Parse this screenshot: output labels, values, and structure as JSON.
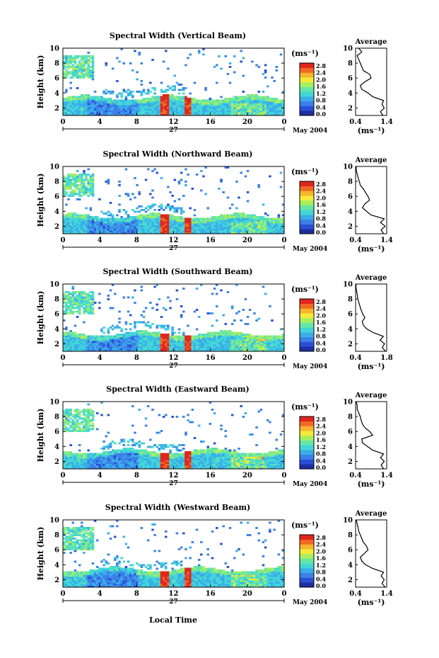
{
  "figure": {
    "shared_xlabel": "Local Time",
    "date_label": "May 2004",
    "day_label": "27"
  },
  "colorbar": {
    "unit": "(ms⁻¹)",
    "ticks": [
      "0.0",
      "0.4",
      "0.8",
      "1.2",
      "1.6",
      "2.0",
      "2.4",
      "2.8"
    ],
    "colors": [
      "#1d2fa0",
      "#2a4fd6",
      "#3c7fe8",
      "#3aaee8",
      "#43d6d8",
      "#66e6a6",
      "#a6ef5e",
      "#f5ea3c",
      "#f7b52d",
      "#f06a24",
      "#e0261e"
    ]
  },
  "chart_data": [
    {
      "type": "heatmap",
      "title": "Spectral Width (Vertical Beam)",
      "ylabel": "Height (km)",
      "xlabel": "Local Time",
      "x_ticks": [
        "0",
        "4",
        "8",
        "12",
        "16",
        "20",
        "0"
      ],
      "y_ticks": [
        "2",
        "4",
        "6",
        "8",
        "10"
      ],
      "xlim": [
        0,
        24
      ],
      "ylim": [
        1,
        10
      ],
      "colorbar_range": [
        0,
        3.0
      ],
      "profile": {
        "title": "Average",
        "xlabel": "(ms⁻¹)",
        "x_ticks": [
          "0.4",
          "1.4"
        ],
        "xlim": [
          0.4,
          1.4
        ],
        "heights": [
          1.0,
          1.5,
          2.0,
          2.5,
          3.0,
          3.5,
          4.0,
          4.5,
          5.0,
          5.5,
          6.0,
          6.5,
          7.0,
          7.5,
          8.0,
          8.5,
          9.0,
          9.5,
          10.0
        ],
        "values": [
          1.28,
          1.2,
          1.32,
          1.25,
          1.3,
          0.95,
          0.8,
          0.6,
          0.55,
          0.7,
          0.9,
          0.85,
          0.65,
          0.6,
          0.55,
          0.5,
          0.45,
          0.6,
          0.5
        ]
      }
    },
    {
      "type": "heatmap",
      "title": "Spectral Width (Northward Beam)",
      "ylabel": "Height (km)",
      "xlabel": "Local Time",
      "x_ticks": [
        "0",
        "4",
        "8",
        "12",
        "16",
        "20",
        "0"
      ],
      "y_ticks": [
        "2",
        "4",
        "6",
        "8",
        "10"
      ],
      "xlim": [
        0,
        24
      ],
      "ylim": [
        1,
        10
      ],
      "colorbar_range": [
        0,
        3.0
      ],
      "profile": {
        "title": "Average",
        "xlabel": "(ms⁻¹)",
        "x_ticks": [
          "0.4",
          "1.4"
        ],
        "xlim": [
          0.4,
          1.4
        ],
        "heights": [
          1.0,
          1.5,
          2.0,
          2.5,
          3.0,
          3.5,
          4.0,
          4.5,
          5.0,
          5.5,
          6.0,
          6.5,
          7.0,
          7.5,
          8.0,
          8.5,
          9.0,
          9.5,
          10.0
        ],
        "values": [
          1.3,
          1.22,
          1.35,
          1.2,
          1.32,
          0.9,
          0.75,
          0.62,
          0.7,
          0.85,
          0.8,
          0.72,
          0.65,
          0.55,
          0.52,
          0.48,
          0.45,
          0.42,
          0.42
        ]
      }
    },
    {
      "type": "heatmap",
      "title": "Spectral Width (Southward Beam)",
      "ylabel": "Height (km)",
      "xlabel": "Local Time",
      "x_ticks": [
        "0",
        "4",
        "8",
        "12",
        "16",
        "20",
        "0"
      ],
      "y_ticks": [
        "2",
        "4",
        "6",
        "8",
        "10"
      ],
      "xlim": [
        0,
        24
      ],
      "ylim": [
        1,
        10
      ],
      "colorbar_range": [
        0,
        3.0
      ],
      "profile": {
        "title": "Average",
        "xlabel": "(ms⁻¹)",
        "x_ticks": [
          "0.4",
          "1.8"
        ],
        "xlim": [
          0.4,
          1.8
        ],
        "heights": [
          1.0,
          1.5,
          2.0,
          2.5,
          3.0,
          3.5,
          4.0,
          4.5,
          5.0,
          5.5,
          6.0,
          6.5,
          7.0,
          7.5,
          8.0,
          8.5,
          9.0,
          9.5,
          10.0
        ],
        "values": [
          1.75,
          1.6,
          1.7,
          1.5,
          1.65,
          1.2,
          0.9,
          0.75,
          0.7,
          0.82,
          0.72,
          0.65,
          0.6,
          0.55,
          0.5,
          0.48,
          0.45,
          0.42,
          0.42
        ]
      }
    },
    {
      "type": "heatmap",
      "title": "Spectral Width (Eastward Beam)",
      "ylabel": "Height (km)",
      "xlabel": "Local Time",
      "x_ticks": [
        "0",
        "4",
        "8",
        "12",
        "16",
        "20",
        "0"
      ],
      "y_ticks": [
        "2",
        "4",
        "6",
        "8",
        "10"
      ],
      "xlim": [
        0,
        24
      ],
      "ylim": [
        1,
        10
      ],
      "colorbar_range": [
        0,
        3.0
      ],
      "profile": {
        "title": "Average",
        "xlabel": "(ms⁻¹)",
        "x_ticks": [
          "0.4",
          "1.4"
        ],
        "xlim": [
          0.4,
          1.4
        ],
        "heights": [
          1.0,
          1.5,
          2.0,
          2.5,
          3.0,
          3.5,
          4.0,
          4.5,
          5.0,
          5.5,
          6.0,
          6.5,
          7.0,
          7.5,
          8.0,
          8.5,
          9.0,
          9.5,
          10.0
        ],
        "values": [
          1.3,
          1.22,
          1.32,
          1.2,
          1.3,
          0.95,
          0.78,
          0.62,
          0.6,
          0.95,
          0.85,
          0.7,
          0.62,
          0.58,
          0.55,
          0.5,
          0.45,
          0.45,
          0.42
        ]
      }
    },
    {
      "type": "heatmap",
      "title": "Spectral Width (Westward Beam)",
      "ylabel": "Height (km)",
      "xlabel": "Local Time",
      "x_ticks": [
        "0",
        "4",
        "8",
        "12",
        "16",
        "20",
        "0"
      ],
      "y_ticks": [
        "2",
        "4",
        "6",
        "8",
        "10"
      ],
      "xlim": [
        0,
        24
      ],
      "ylim": [
        1,
        10
      ],
      "colorbar_range": [
        0,
        3.0
      ],
      "profile": {
        "title": "Average",
        "xlabel": "(ms⁻¹)",
        "x_ticks": [
          "0.4",
          "1.4"
        ],
        "xlim": [
          0.4,
          1.4
        ],
        "heights": [
          1.0,
          1.5,
          2.0,
          2.5,
          3.0,
          3.5,
          4.0,
          4.5,
          5.0,
          5.5,
          6.0,
          6.5,
          7.0,
          7.5,
          8.0,
          8.5,
          9.0,
          9.5,
          10.0
        ],
        "values": [
          1.35,
          1.25,
          1.32,
          1.22,
          1.3,
          0.95,
          0.72,
          0.6,
          0.55,
          0.68,
          0.8,
          0.75,
          0.65,
          0.6,
          0.55,
          0.5,
          0.48,
          0.45,
          0.42
        ]
      }
    }
  ]
}
